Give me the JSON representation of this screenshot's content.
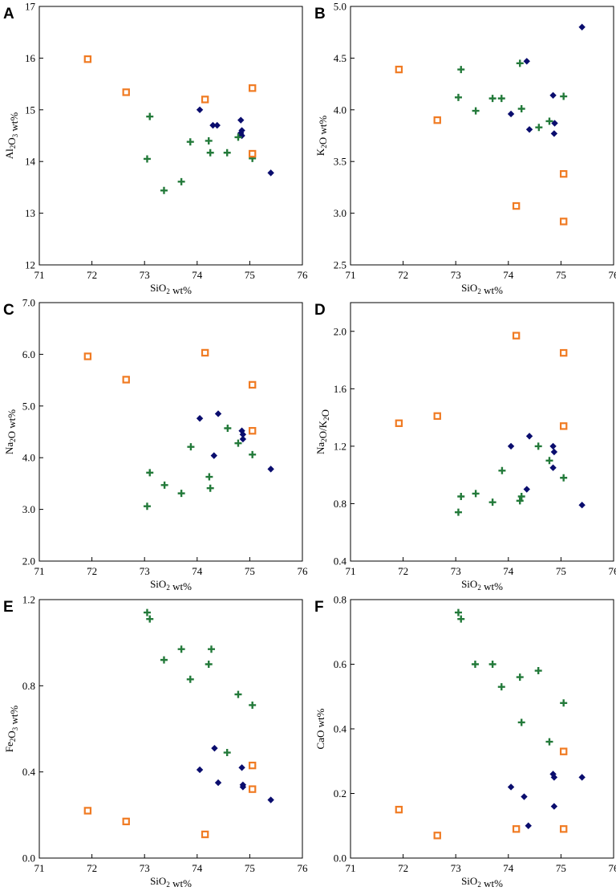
{
  "colors": {
    "diamond": "#0a0d6e",
    "plus": "#237a3a",
    "square": "#f07b23"
  },
  "chart_data": [
    {
      "type": "scatter",
      "panel": "A",
      "xlabel": "SiO2 wt%",
      "ylabel": "Al2O3 wt%",
      "xlim": [
        71,
        76
      ],
      "ylim": [
        12,
        17
      ],
      "xticks": [
        71,
        72,
        73,
        74,
        75,
        76
      ],
      "xtick_labels": [
        "71",
        "72",
        "73",
        "74",
        "75",
        "76"
      ],
      "yticks": [
        12,
        13,
        14,
        15,
        16,
        17
      ],
      "ytick_labels": [
        "12",
        "13",
        "14",
        "15",
        "16",
        "17"
      ],
      "series": [
        {
          "name": "diamond",
          "marker": "diamond",
          "x": [
            74.05,
            74.3,
            74.38,
            74.83,
            74.85,
            74.85,
            74.83,
            75.4
          ],
          "y": [
            15.0,
            14.7,
            14.7,
            14.8,
            14.6,
            14.5,
            14.55,
            13.78
          ]
        },
        {
          "name": "plus",
          "marker": "plus",
          "x": [
            73.1,
            73.05,
            73.37,
            73.7,
            73.87,
            74.22,
            74.25,
            74.57,
            74.78,
            75.05
          ],
          "y": [
            14.87,
            14.05,
            13.44,
            13.61,
            14.38,
            14.4,
            14.17,
            14.17,
            14.47,
            14.06
          ]
        },
        {
          "name": "square",
          "marker": "square",
          "x": [
            71.92,
            72.65,
            74.15,
            75.05,
            75.05
          ],
          "y": [
            15.98,
            15.34,
            15.2,
            15.42,
            14.15
          ]
        }
      ]
    },
    {
      "type": "scatter",
      "panel": "B",
      "xlabel": "SiO2 wt%",
      "ylabel": "K2O wt%",
      "xlim": [
        71,
        76
      ],
      "ylim": [
        2.5,
        5.0
      ],
      "xticks": [
        71,
        72,
        73,
        74,
        75,
        76
      ],
      "xtick_labels": [
        "71",
        "72",
        "73",
        "74",
        "75",
        "76"
      ],
      "yticks": [
        2.5,
        3.0,
        3.5,
        4.0,
        4.5,
        5.0
      ],
      "ytick_labels": [
        "2.5",
        "3.0",
        "3.5",
        "4.0",
        "4.5",
        "5.0"
      ],
      "series": [
        {
          "name": "diamond",
          "marker": "diamond",
          "x": [
            74.05,
            74.35,
            74.4,
            74.85,
            74.88,
            74.87,
            75.4
          ],
          "y": [
            3.96,
            4.47,
            3.81,
            4.14,
            3.87,
            3.77,
            4.8
          ]
        },
        {
          "name": "plus",
          "marker": "plus",
          "x": [
            73.05,
            73.1,
            73.38,
            73.7,
            73.87,
            74.22,
            74.25,
            74.58,
            74.78,
            75.05
          ],
          "y": [
            4.12,
            4.39,
            3.99,
            4.11,
            4.11,
            4.45,
            4.01,
            3.83,
            3.89,
            4.13
          ]
        },
        {
          "name": "square",
          "marker": "square",
          "x": [
            71.92,
            72.65,
            74.15,
            75.05,
            75.05
          ],
          "y": [
            4.39,
            3.9,
            3.07,
            3.38,
            2.92
          ]
        }
      ]
    },
    {
      "type": "scatter",
      "panel": "C",
      "xlabel": "SiO2 wt%",
      "ylabel": "Na2O wt%",
      "xlim": [
        71,
        76
      ],
      "ylim": [
        2.0,
        7.0
      ],
      "xticks": [
        71,
        72,
        73,
        74,
        75,
        76
      ],
      "xtick_labels": [
        "71",
        "72",
        "73",
        "74",
        "75",
        "76"
      ],
      "yticks": [
        2.0,
        3.0,
        4.0,
        5.0,
        6.0,
        7.0
      ],
      "ytick_labels": [
        "2.0",
        "3.0",
        "4.0",
        "5.0",
        "6.0",
        "7.0"
      ],
      "series": [
        {
          "name": "diamond",
          "marker": "diamond",
          "x": [
            74.05,
            74.32,
            74.4,
            74.85,
            74.87,
            74.87,
            75.4
          ],
          "y": [
            4.76,
            4.04,
            4.85,
            4.52,
            4.45,
            4.36,
            3.78
          ]
        },
        {
          "name": "plus",
          "marker": "plus",
          "x": [
            73.05,
            73.1,
            73.38,
            73.7,
            73.88,
            74.23,
            74.25,
            74.58,
            74.78,
            75.05
          ],
          "y": [
            3.06,
            3.71,
            3.47,
            3.31,
            4.21,
            3.63,
            3.41,
            4.57,
            4.28,
            4.06
          ]
        },
        {
          "name": "square",
          "marker": "square",
          "x": [
            71.92,
            72.65,
            74.15,
            75.05,
            75.05
          ],
          "y": [
            5.96,
            5.51,
            6.03,
            5.41,
            4.52
          ]
        }
      ]
    },
    {
      "type": "scatter",
      "panel": "D",
      "xlabel": "SiO2 wt%",
      "ylabel": "Na2O/K2O",
      "xlim": [
        71,
        76
      ],
      "ylim": [
        0.4,
        2.2
      ],
      "xticks": [
        71,
        72,
        73,
        74,
        75,
        76
      ],
      "xtick_labels": [
        "71",
        "72",
        "73",
        "74",
        "75",
        "76"
      ],
      "yticks": [
        0.4,
        0.8,
        1.2,
        1.6,
        2.0
      ],
      "ytick_labels": [
        "0.4",
        "0.8",
        "1.2",
        "1.6",
        "2.0"
      ],
      "series": [
        {
          "name": "diamond",
          "marker": "diamond",
          "x": [
            74.05,
            74.35,
            74.4,
            74.85,
            74.87,
            74.85,
            75.4
          ],
          "y": [
            1.2,
            0.9,
            1.27,
            1.2,
            1.16,
            1.05,
            0.79
          ]
        },
        {
          "name": "plus",
          "marker": "plus",
          "x": [
            73.05,
            73.1,
            73.38,
            73.7,
            73.88,
            74.22,
            74.25,
            74.57,
            74.78,
            75.05
          ],
          "y": [
            0.74,
            0.85,
            0.87,
            0.81,
            1.03,
            0.82,
            0.85,
            1.2,
            1.1,
            0.98
          ]
        },
        {
          "name": "square",
          "marker": "square",
          "x": [
            71.92,
            72.65,
            74.15,
            75.05,
            75.05
          ],
          "y": [
            1.36,
            1.41,
            1.97,
            1.85,
            1.34
          ]
        }
      ]
    },
    {
      "type": "scatter",
      "panel": "E",
      "xlabel": "SiO2 wt%",
      "ylabel": "Fe2O3 wt%",
      "xlim": [
        71,
        76
      ],
      "ylim": [
        0.0,
        1.2
      ],
      "xticks": [
        71,
        72,
        73,
        74,
        75,
        76
      ],
      "xtick_labels": [
        "71",
        "72",
        "73",
        "74",
        "75",
        "76"
      ],
      "yticks": [
        0.0,
        0.4,
        0.8,
        1.2
      ],
      "ytick_labels": [
        "0.0",
        "0.4",
        "0.8",
        "1.2"
      ],
      "series": [
        {
          "name": "diamond",
          "marker": "diamond",
          "x": [
            74.05,
            74.33,
            74.4,
            74.85,
            74.87,
            74.87,
            75.4
          ],
          "y": [
            0.41,
            0.51,
            0.35,
            0.42,
            0.34,
            0.33,
            0.27
          ]
        },
        {
          "name": "plus",
          "marker": "plus",
          "x": [
            73.05,
            73.1,
            73.37,
            73.7,
            73.87,
            74.22,
            74.27,
            74.57,
            74.78,
            75.05
          ],
          "y": [
            1.14,
            1.11,
            0.92,
            0.97,
            0.83,
            0.9,
            0.97,
            0.49,
            0.76,
            0.71
          ]
        },
        {
          "name": "square",
          "marker": "square",
          "x": [
            71.92,
            72.65,
            74.15,
            75.05,
            75.05
          ],
          "y": [
            0.22,
            0.17,
            0.11,
            0.43,
            0.32
          ]
        }
      ]
    },
    {
      "type": "scatter",
      "panel": "F",
      "xlabel": "SiO2 wt%",
      "ylabel": "CaO wt%",
      "xlim": [
        71,
        76
      ],
      "ylim": [
        0.0,
        0.8
      ],
      "xticks": [
        71,
        72,
        73,
        74,
        75,
        76
      ],
      "xtick_labels": [
        "71",
        "72",
        "73",
        "74",
        "75",
        "76"
      ],
      "yticks": [
        0.0,
        0.2,
        0.4,
        0.6,
        0.8
      ],
      "ytick_labels": [
        "0.0",
        "0.2",
        "0.4",
        "0.6",
        "0.8"
      ],
      "series": [
        {
          "name": "diamond",
          "marker": "diamond",
          "x": [
            74.05,
            74.3,
            74.38,
            74.85,
            74.87,
            74.87,
            75.4
          ],
          "y": [
            0.22,
            0.19,
            0.1,
            0.26,
            0.25,
            0.16,
            0.25
          ]
        },
        {
          "name": "plus",
          "marker": "plus",
          "x": [
            73.05,
            73.1,
            73.37,
            73.7,
            73.87,
            74.22,
            74.25,
            74.57,
            74.78,
            75.05
          ],
          "y": [
            0.76,
            0.74,
            0.6,
            0.6,
            0.53,
            0.56,
            0.42,
            0.58,
            0.36,
            0.48
          ]
        },
        {
          "name": "square",
          "marker": "square",
          "x": [
            71.92,
            72.65,
            74.15,
            75.05,
            75.05
          ],
          "y": [
            0.15,
            0.07,
            0.09,
            0.33,
            0.09
          ]
        }
      ]
    }
  ]
}
